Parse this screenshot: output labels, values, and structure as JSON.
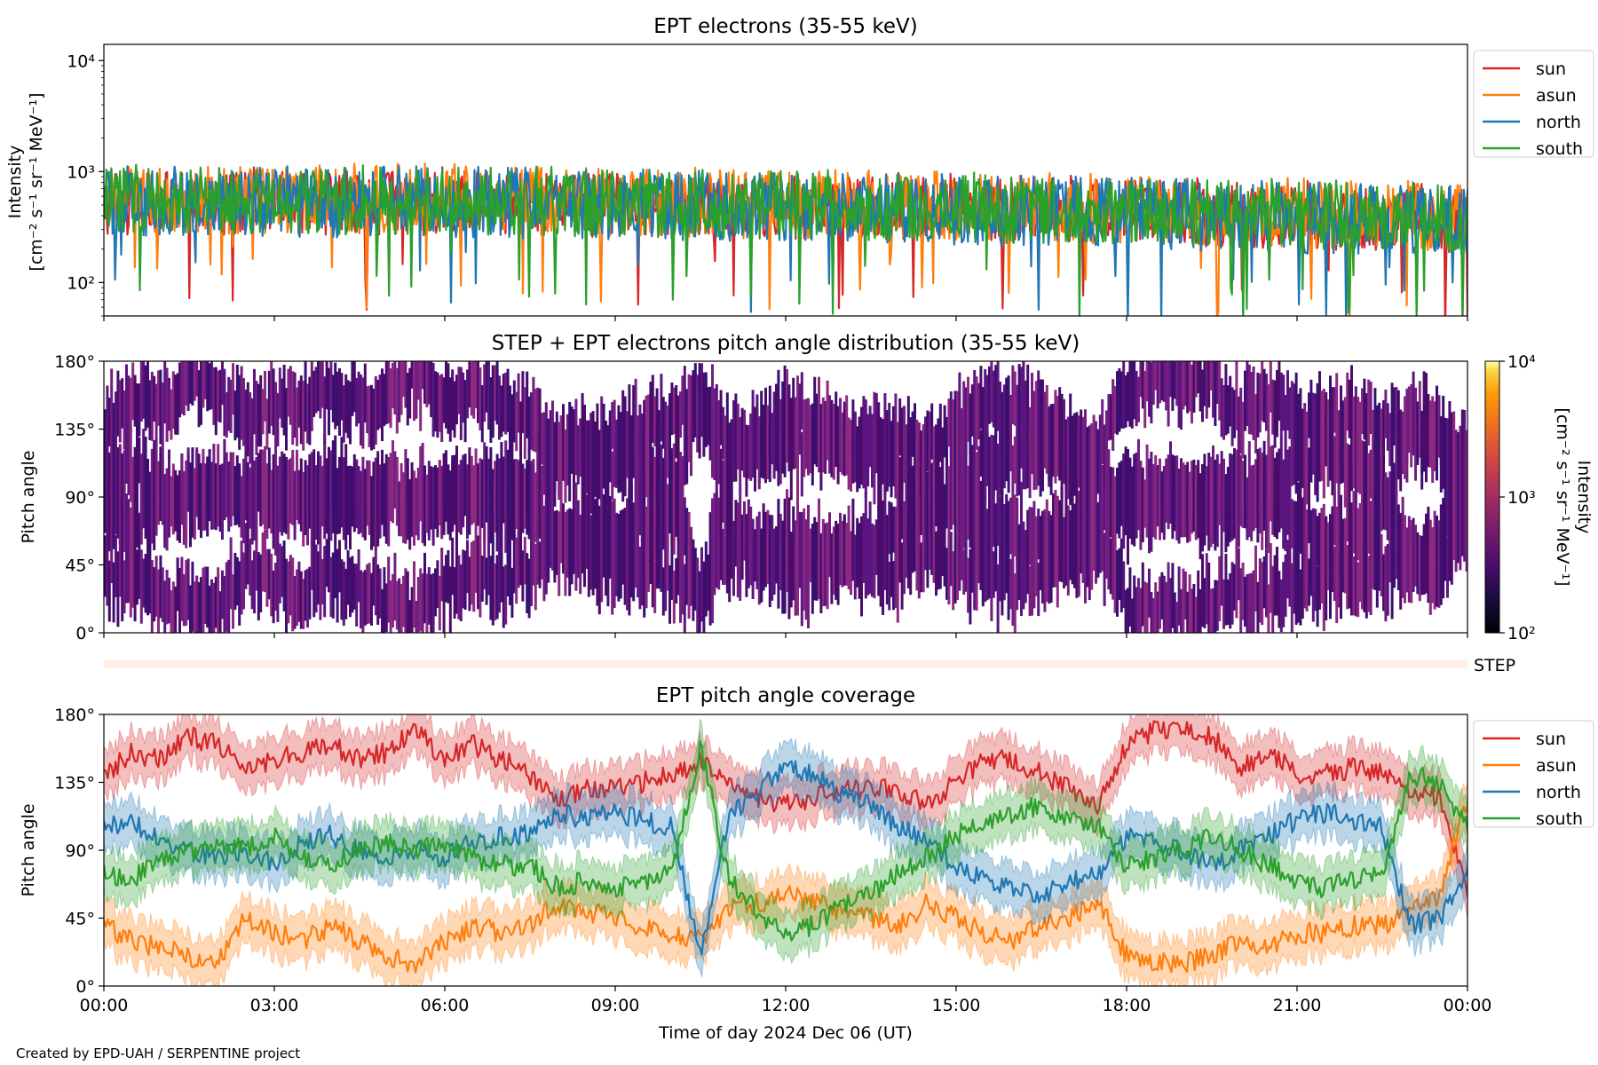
{
  "figure": {
    "credit": "Created by EPD-UAH / SERPENTINE project"
  },
  "colors": {
    "sun": "#d62728",
    "asun": "#ff7f0e",
    "north": "#1f77b4",
    "south": "#2ca02c",
    "step_strip": "#fdeee6"
  },
  "chart_data": [
    {
      "type": "line",
      "title": "EPT electrons (35-55 keV)",
      "ylabel": "Intensity",
      "yunit_label": "[cm⁻² s⁻¹ sr⁻¹ MeV⁻¹]",
      "yscale": "log",
      "ylim": [
        50,
        14000
      ],
      "yticks": [
        {
          "value": 100,
          "label": "10²"
        },
        {
          "value": 1000,
          "label": "10³"
        },
        {
          "value": 10000,
          "label": "10⁴"
        }
      ],
      "xlim_hours": [
        0,
        24
      ],
      "legend": "outside-right",
      "series": [
        {
          "name": "sun",
          "color": "#d62728",
          "baseline": [
            [
              0,
              520
            ],
            [
              6,
              520
            ],
            [
              12,
              480
            ],
            [
              18,
              430
            ],
            [
              24,
              360
            ]
          ],
          "spread": 0.42
        },
        {
          "name": "asun",
          "color": "#ff7f0e",
          "baseline": [
            [
              0,
              560
            ],
            [
              6,
              560
            ],
            [
              12,
              500
            ],
            [
              18,
              450
            ],
            [
              24,
              380
            ]
          ],
          "spread": 0.44
        },
        {
          "name": "north",
          "color": "#1f77b4",
          "baseline": [
            [
              0,
              540
            ],
            [
              6,
              530
            ],
            [
              12,
              480
            ],
            [
              18,
              420
            ],
            [
              24,
              350
            ]
          ],
          "spread": 0.46
        },
        {
          "name": "south",
          "color": "#2ca02c",
          "baseline": [
            [
              0,
              550
            ],
            [
              6,
              540
            ],
            [
              12,
              500
            ],
            [
              18,
              440
            ],
            [
              24,
              370
            ]
          ],
          "spread": 0.44
        }
      ]
    },
    {
      "type": "heatmap",
      "title": "STEP + EPT electrons pitch angle distribution (35-55 keV)",
      "ylabel": "Pitch angle",
      "ylim": [
        0,
        180
      ],
      "yticks": [
        {
          "value": 0,
          "label": "0°"
        },
        {
          "value": 45,
          "label": "45°"
        },
        {
          "value": 90,
          "label": "90°"
        },
        {
          "value": 135,
          "label": "135°"
        },
        {
          "value": 180,
          "label": "180°"
        }
      ],
      "xlim_hours": [
        0,
        24
      ],
      "colorbar": {
        "label": "Intensity",
        "unit_label": "[cm⁻² s⁻¹ sr⁻¹ MeV⁻¹]",
        "scale": "log",
        "range": [
          100,
          10000
        ],
        "ticks": [
          {
            "value": 100,
            "label": "10²"
          },
          {
            "value": 1000,
            "label": "10³"
          },
          {
            "value": 10000,
            "label": "10⁴"
          }
        ],
        "colormap": "inferno",
        "cell_colors": [
          "#3b0f70",
          "#5a167e",
          "#721f81",
          "#8c2981",
          "#4a0c6b"
        ]
      },
      "coverage_source": "EPT sun/asun/north/south pitch angle coverage"
    },
    {
      "type": "strip",
      "label": "STEP"
    },
    {
      "type": "line",
      "title": "EPT pitch angle coverage",
      "ylabel": "Pitch angle",
      "xlabel": "Time of day 2024 Dec 06 (UT)",
      "ylim": [
        0,
        180
      ],
      "yticks": [
        {
          "value": 0,
          "label": "0°"
        },
        {
          "value": 45,
          "label": "45°"
        },
        {
          "value": 90,
          "label": "90°"
        },
        {
          "value": 135,
          "label": "135°"
        },
        {
          "value": 180,
          "label": "180°"
        }
      ],
      "xlim_hours": [
        0,
        24
      ],
      "xticks": [
        {
          "value": 0,
          "label": "00:00"
        },
        {
          "value": 3,
          "label": "03:00"
        },
        {
          "value": 6,
          "label": "06:00"
        },
        {
          "value": 9,
          "label": "09:00"
        },
        {
          "value": 12,
          "label": "12:00"
        },
        {
          "value": 15,
          "label": "15:00"
        },
        {
          "value": 18,
          "label": "18:00"
        },
        {
          "value": 21,
          "label": "21:00"
        },
        {
          "value": 24,
          "label": "00:00"
        }
      ],
      "legend": "outside-right",
      "band_halfwidth_deg": 15,
      "series": [
        {
          "name": "sun",
          "color": "#d62728",
          "x": [
            0,
            0.5,
            1,
            1.5,
            2,
            2.5,
            3,
            3.5,
            4,
            4.5,
            5,
            5.5,
            6,
            6.5,
            7,
            7.5,
            8,
            8.5,
            9,
            9.5,
            10,
            10.5,
            11,
            11.5,
            12,
            12.5,
            13,
            13.5,
            14,
            14.5,
            15,
            15.5,
            16,
            16.5,
            17,
            17.5,
            18,
            18.5,
            19,
            19.5,
            20,
            20.5,
            21,
            21.5,
            22,
            22.5,
            23,
            23.5,
            24
          ],
          "y": [
            140,
            155,
            150,
            165,
            160,
            145,
            150,
            155,
            160,
            150,
            155,
            170,
            150,
            160,
            150,
            140,
            125,
            130,
            130,
            135,
            140,
            150,
            135,
            125,
            120,
            125,
            130,
            130,
            130,
            120,
            135,
            150,
            150,
            140,
            130,
            120,
            160,
            170,
            170,
            165,
            145,
            155,
            140,
            140,
            145,
            140,
            130,
            125,
            60
          ]
        },
        {
          "name": "asun",
          "color": "#ff7f0e",
          "x": [
            0,
            0.5,
            1,
            1.5,
            2,
            2.5,
            3,
            3.5,
            4,
            4.5,
            5,
            5.5,
            6,
            6.5,
            7,
            7.5,
            8,
            8.5,
            9,
            9.5,
            10,
            10.5,
            11,
            11.5,
            12,
            12.5,
            13,
            13.5,
            14,
            14.5,
            15,
            15.5,
            16,
            16.5,
            17,
            17.5,
            18,
            18.5,
            19,
            19.5,
            20,
            20.5,
            21,
            21.5,
            22,
            22.5,
            23,
            23.5,
            24
          ],
          "y": [
            40,
            30,
            25,
            20,
            15,
            45,
            35,
            30,
            40,
            30,
            20,
            15,
            30,
            40,
            35,
            40,
            55,
            50,
            45,
            40,
            35,
            30,
            50,
            55,
            60,
            55,
            50,
            45,
            40,
            55,
            45,
            35,
            30,
            40,
            45,
            55,
            20,
            15,
            15,
            20,
            30,
            25,
            35,
            35,
            40,
            40,
            50,
            60,
            125
          ]
        },
        {
          "name": "north",
          "color": "#1f77b4",
          "x": [
            0,
            0.5,
            1,
            1.5,
            2,
            2.5,
            3,
            3.5,
            4,
            4.5,
            5,
            5.5,
            6,
            6.5,
            7,
            7.5,
            8,
            8.5,
            9,
            9.5,
            10,
            10.5,
            11,
            11.5,
            12,
            12.5,
            13,
            13.5,
            14,
            14.5,
            15,
            15.5,
            16,
            16.5,
            17,
            17.5,
            18,
            18.5,
            19,
            19.5,
            20,
            20.5,
            21,
            21.5,
            22,
            22.5,
            23,
            23.5,
            24
          ],
          "y": [
            105,
            110,
            95,
            90,
            85,
            90,
            80,
            95,
            100,
            90,
            85,
            90,
            85,
            95,
            100,
            100,
            115,
            110,
            115,
            110,
            105,
            20,
            110,
            130,
            145,
            140,
            125,
            120,
            105,
            95,
            80,
            70,
            65,
            60,
            70,
            75,
            100,
            95,
            90,
            80,
            90,
            100,
            110,
            115,
            110,
            105,
            40,
            45,
            75
          ]
        },
        {
          "name": "south",
          "color": "#2ca02c",
          "x": [
            0,
            0.5,
            1,
            1.5,
            2,
            2.5,
            3,
            3.5,
            4,
            4.5,
            5,
            5.5,
            6,
            6.5,
            7,
            7.5,
            8,
            8.5,
            9,
            9.5,
            10,
            10.5,
            11,
            11.5,
            12,
            12.5,
            13,
            13.5,
            14,
            14.5,
            15,
            15.5,
            16,
            16.5,
            17,
            17.5,
            18,
            18.5,
            19,
            19.5,
            20,
            20.5,
            21,
            21.5,
            22,
            22.5,
            23,
            23.5,
            24
          ],
          "y": [
            75,
            70,
            85,
            90,
            95,
            90,
            100,
            85,
            80,
            90,
            95,
            90,
            95,
            85,
            80,
            80,
            65,
            70,
            65,
            70,
            75,
            160,
            70,
            50,
            35,
            40,
            55,
            60,
            75,
            85,
            100,
            110,
            115,
            120,
            110,
            105,
            80,
            85,
            90,
            100,
            90,
            80,
            70,
            65,
            70,
            75,
            140,
            135,
            105
          ]
        }
      ]
    }
  ]
}
